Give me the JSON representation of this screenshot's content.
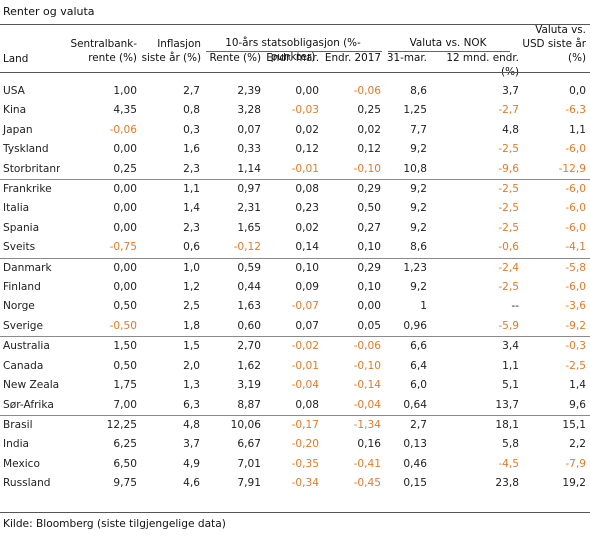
{
  "title": "Renter og valuta",
  "source": "Kilde: Bloomberg (siste tilgjengelige data)",
  "group_headers": {
    "bond": "10-års statsobligasjon (%-punkter)",
    "fx_nok": "Valuta vs. NOK"
  },
  "columns": {
    "land": "Land",
    "sentralbank_1": "Sentralbank-",
    "sentralbank_2": "rente (%)",
    "inflasjon_1": "Inflasjon",
    "inflasjon_2": "siste år (%)",
    "rente": "Rente (%)",
    "endr_mar": "Endr. mar.",
    "endr_2017": "Endr. 2017",
    "mar31": "31-mar.",
    "mnd12": "12 mnd. endr. (%)",
    "usd_1": "Valuta vs.",
    "usd_2": "USD siste år",
    "usd_3": "(%)"
  },
  "highlight_color": "#e07b2a",
  "groups": [
    [
      [
        "USA",
        "1,00",
        "2,7",
        "2,39",
        "0,00",
        "-0,06",
        "8,6",
        "3,7",
        "0,0"
      ],
      [
        "Kina",
        "4,35",
        "0,8",
        "3,28",
        "-0,03",
        "0,25",
        "1,25",
        "-2,7",
        "-6,3"
      ],
      [
        "Japan",
        "-0,06",
        "0,3",
        "0,07",
        "0,02",
        "0,02",
        "7,7",
        "4,8",
        "1,1"
      ],
      [
        "Tyskland",
        "0,00",
        "1,6",
        "0,33",
        "0,12",
        "0,12",
        "9,2",
        "-2,5",
        "-6,0"
      ],
      [
        "Storbritannia",
        "0,25",
        "2,3",
        "1,14",
        "-0,01",
        "-0,10",
        "10,8",
        "-9,6",
        "-12,9"
      ]
    ],
    [
      [
        "Frankrike",
        "0,00",
        "1,1",
        "0,97",
        "0,08",
        "0,29",
        "9,2",
        "-2,5",
        "-6,0"
      ],
      [
        "Italia",
        "0,00",
        "1,4",
        "2,31",
        "0,23",
        "0,50",
        "9,2",
        "-2,5",
        "-6,0"
      ],
      [
        "Spania",
        "0,00",
        "2,3",
        "1,65",
        "0,02",
        "0,27",
        "9,2",
        "-2,5",
        "-6,0"
      ],
      [
        "Sveits",
        "-0,75",
        "0,6",
        "-0,12",
        "0,14",
        "0,10",
        "8,6",
        "-0,6",
        "-4,1"
      ]
    ],
    [
      [
        "Danmark",
        "0,00",
        "1,0",
        "0,59",
        "0,10",
        "0,29",
        "1,23",
        "-2,4",
        "-5,8"
      ],
      [
        "Finland",
        "0,00",
        "1,2",
        "0,44",
        "0,09",
        "0,10",
        "9,2",
        "-2,5",
        "-6,0"
      ],
      [
        "Norge",
        "0,50",
        "2,5",
        "1,63",
        "-0,07",
        "0,00",
        "1",
        "--",
        "-3,6"
      ],
      [
        "Sverige",
        "-0,50",
        "1,8",
        "0,60",
        "0,07",
        "0,05",
        "0,96",
        "-5,9",
        "-9,2"
      ]
    ],
    [
      [
        "Australia",
        "1,50",
        "1,5",
        "2,70",
        "-0,02",
        "-0,06",
        "6,6",
        "3,4",
        "-0,3"
      ],
      [
        "Canada",
        "0,50",
        "2,0",
        "1,62",
        "-0,01",
        "-0,10",
        "6,4",
        "1,1",
        "-2,5"
      ],
      [
        "New Zealand",
        "1,75",
        "1,3",
        "3,19",
        "-0,04",
        "-0,14",
        "6,0",
        "5,1",
        "1,4"
      ],
      [
        "Sør-Afrika",
        "7,00",
        "6,3",
        "8,87",
        "0,08",
        "-0,04",
        "0,64",
        "13,7",
        "9,6"
      ]
    ],
    [
      [
        "Brasil",
        "12,25",
        "4,8",
        "10,06",
        "-0,17",
        "-1,34",
        "2,7",
        "18,1",
        "15,1"
      ],
      [
        "India",
        "6,25",
        "3,7",
        "6,67",
        "-0,20",
        "0,16",
        "0,13",
        "5,8",
        "2,2"
      ],
      [
        "Mexico",
        "6,50",
        "4,9",
        "7,01",
        "-0,35",
        "-0,41",
        "0,46",
        "-4,5",
        "-7,9"
      ],
      [
        "Russland",
        "9,75",
        "4,6",
        "7,91",
        "-0,34",
        "-0,45",
        "0,15",
        "23,8",
        "19,2"
      ]
    ]
  ]
}
